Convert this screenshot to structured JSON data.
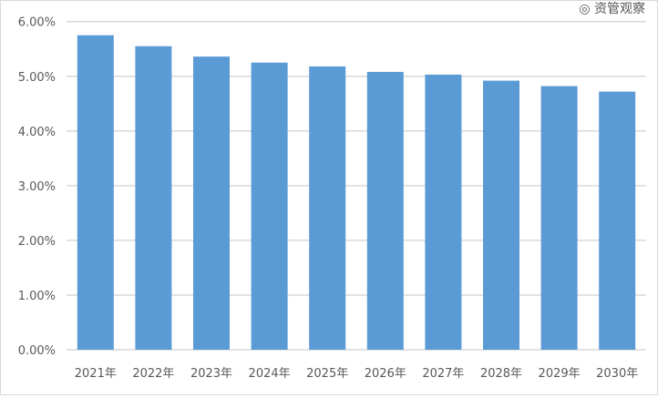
{
  "chart_data": {
    "type": "bar",
    "categories": [
      "2021年",
      "2022年",
      "2023年",
      "2024年",
      "2025年",
      "2026年",
      "2027年",
      "2028年",
      "2029年",
      "2030年"
    ],
    "values": [
      5.75,
      5.55,
      5.36,
      5.25,
      5.18,
      5.08,
      5.03,
      4.92,
      4.82,
      4.72
    ],
    "ylim": [
      0,
      6
    ],
    "yticks": [
      "0.00%",
      "1.00%",
      "2.00%",
      "3.00%",
      "4.00%",
      "5.00%",
      "6.00%"
    ],
    "grid": true,
    "bar_color": "#5b9bd5",
    "title": "",
    "xlabel": "",
    "ylabel": ""
  },
  "watermark": "资管观察"
}
